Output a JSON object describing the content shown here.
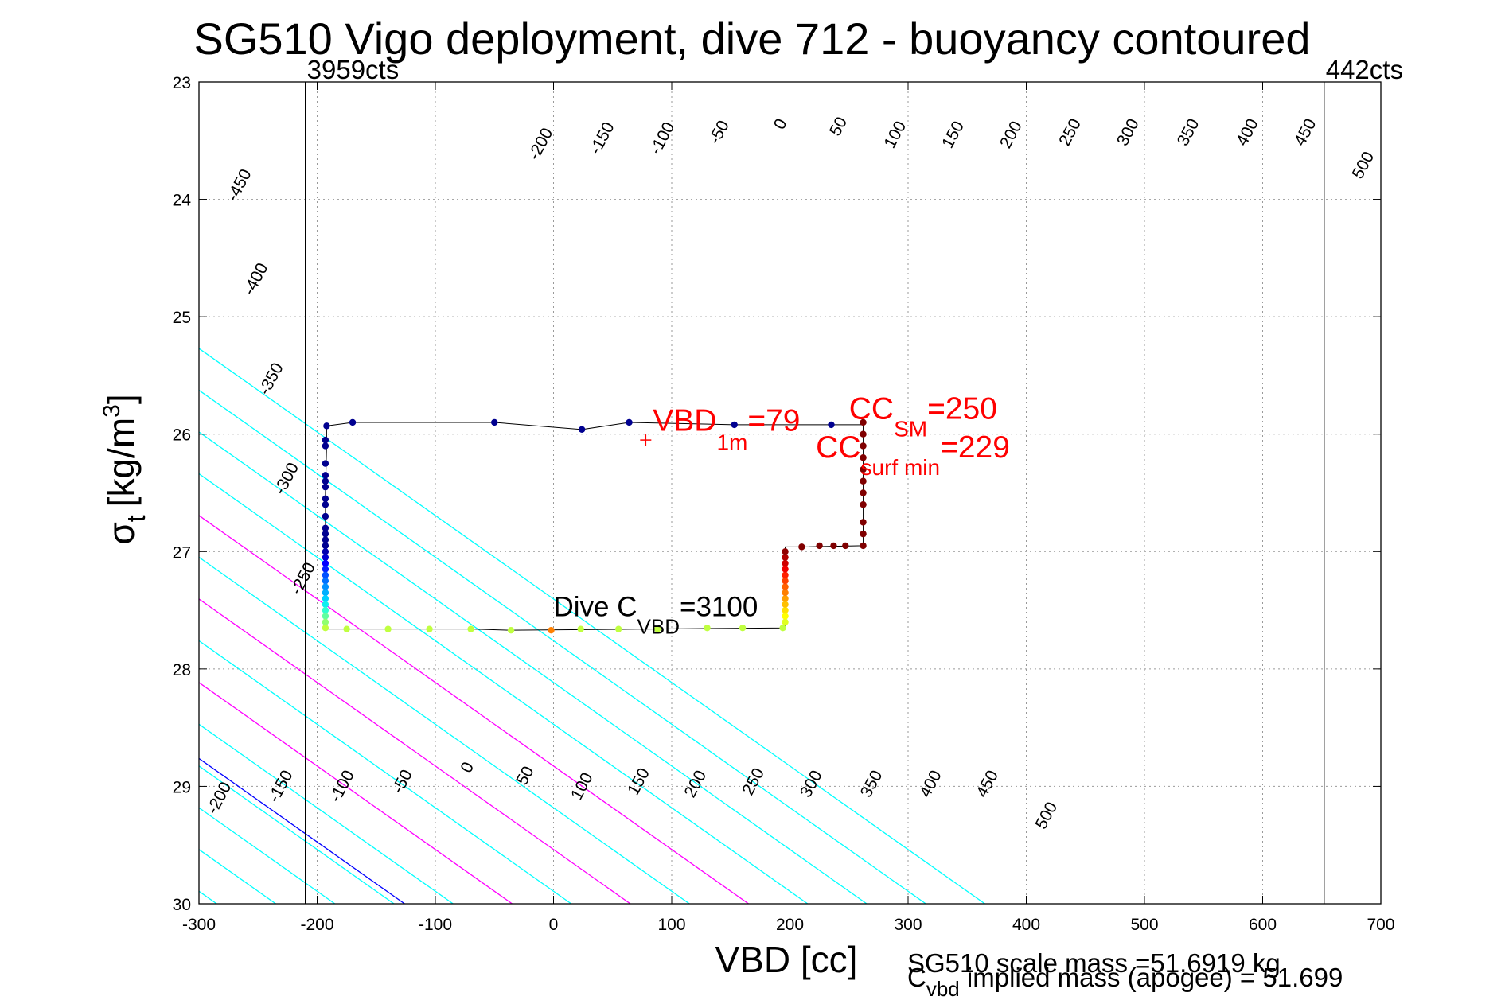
{
  "chart_data": {
    "type": "scatter",
    "title": "SG510 Vigo deployment, dive 712 - buoyancy contoured",
    "xlabel": "VBD [cc]",
    "ylabel_main": "σ",
    "ylabel_sub": "t",
    "ylabel_units": "[kg/m",
    "ylabel_sup": "3",
    "ylabel_close": "]",
    "xlim": [
      -300,
      700
    ],
    "ylim": [
      30,
      23
    ],
    "y_reversed": true,
    "grid": true,
    "x_ticks": [
      -300,
      -200,
      -100,
      0,
      100,
      200,
      300,
      400,
      500,
      600,
      700
    ],
    "x_tick_labels": [
      "-300",
      "-200",
      "-100",
      "0",
      "100",
      "200",
      "300",
      "400",
      "500",
      "600",
      "700"
    ],
    "y_ticks": [
      23,
      24,
      25,
      26,
      27,
      28,
      29,
      30
    ],
    "y_tick_labels": [
      "23",
      "24",
      "25",
      "26",
      "27",
      "28",
      "29",
      "30"
    ],
    "pump_limits": [
      {
        "vbd": -210,
        "label": "3959cts"
      },
      {
        "vbd": 652,
        "label": "442cts"
      }
    ],
    "buoyancy_contours": {
      "slope_vbd_per_sigma": 140.6,
      "line_x_at_sigma_30": [
        -1035,
        -985,
        -935,
        -885,
        -835,
        -785,
        -735,
        -685,
        -635,
        -585,
        -535,
        -485,
        -435,
        -385,
        -335,
        -285,
        -235,
        -185,
        -135,
        -85,
        -35,
        15,
        65,
        115,
        165,
        215,
        265,
        315,
        365
      ],
      "cyan_color": "#00ffff",
      "magenta_x_at_sigma_30": [
        -35,
        65,
        165
      ],
      "magenta_color": "#ff00ff",
      "zero_x_at_sigma_30": -126,
      "zero_color": "#0000ff"
    },
    "contour_labels_top": [
      {
        "text": "-450",
        "vbd": -262,
        "sigma": 23.9
      },
      {
        "text": "-400",
        "vbd": -248,
        "sigma": 24.7
      },
      {
        "text": "-350",
        "vbd": -235,
        "sigma": 25.55
      },
      {
        "text": "-300",
        "vbd": -222,
        "sigma": 26.4
      },
      {
        "text": "-250",
        "vbd": -208,
        "sigma": 27.25
      },
      {
        "text": "-200",
        "vbd": -7,
        "sigma": 23.55
      },
      {
        "text": "-150",
        "vbd": 45,
        "sigma": 23.5
      },
      {
        "text": "-100",
        "vbd": 96,
        "sigma": 23.5
      },
      {
        "text": "-50",
        "vbd": 144,
        "sigma": 23.45
      },
      {
        "text": "0",
        "vbd": 196,
        "sigma": 23.38
      },
      {
        "text": "50",
        "vbd": 245,
        "sigma": 23.4
      },
      {
        "text": "100",
        "vbd": 293,
        "sigma": 23.47
      },
      {
        "text": "150",
        "vbd": 342,
        "sigma": 23.47
      },
      {
        "text": "200",
        "vbd": 391,
        "sigma": 23.47
      },
      {
        "text": "250",
        "vbd": 441,
        "sigma": 23.45
      },
      {
        "text": "300",
        "vbd": 490,
        "sigma": 23.45
      },
      {
        "text": "350",
        "vbd": 541,
        "sigma": 23.45
      },
      {
        "text": "400",
        "vbd": 591,
        "sigma": 23.45
      },
      {
        "text": "450",
        "vbd": 640,
        "sigma": 23.45
      },
      {
        "text": "500",
        "vbd": 689,
        "sigma": 23.73
      }
    ],
    "contour_labels_bottom": [
      {
        "text": "-200",
        "vbd": -279,
        "sigma": 29.12
      },
      {
        "text": "-150",
        "vbd": -227,
        "sigma": 29.02
      },
      {
        "text": "-100",
        "vbd": -175,
        "sigma": 29.02
      },
      {
        "text": "-50",
        "vbd": -124,
        "sigma": 28.98
      },
      {
        "text": "0",
        "vbd": -69,
        "sigma": 28.86
      },
      {
        "text": "50",
        "vbd": -20,
        "sigma": 28.93
      },
      {
        "text": "100",
        "vbd": 28,
        "sigma": 29.02
      },
      {
        "text": "150",
        "vbd": 76,
        "sigma": 28.98
      },
      {
        "text": "200",
        "vbd": 124,
        "sigma": 29.0
      },
      {
        "text": "250",
        "vbd": 173,
        "sigma": 28.98
      },
      {
        "text": "300",
        "vbd": 222,
        "sigma": 29.0
      },
      {
        "text": "350",
        "vbd": 273,
        "sigma": 29.0
      },
      {
        "text": "400",
        "vbd": 323,
        "sigma": 29.0
      },
      {
        "text": "450",
        "vbd": 371,
        "sigma": 29.0
      },
      {
        "text": "500",
        "vbd": 421,
        "sigma": 29.27
      }
    ],
    "trajectory_line": [
      [
        -192,
        25.93
      ],
      [
        -170,
        25.9
      ],
      [
        -50,
        25.9
      ],
      [
        24,
        25.96
      ],
      [
        64,
        25.9
      ],
      [
        153,
        25.92
      ],
      [
        235,
        25.92
      ],
      [
        262,
        25.92
      ],
      [
        262,
        26.95
      ],
      [
        210,
        26.96
      ],
      [
        196,
        26.96
      ],
      [
        196,
        27.65
      ],
      [
        -36,
        27.67
      ],
      [
        -70,
        27.66
      ],
      [
        -105,
        27.66
      ],
      [
        -140,
        27.66
      ],
      [
        -175,
        27.66
      ],
      [
        -193,
        27.66
      ],
      [
        -193,
        27.2
      ],
      [
        -193,
        27.0
      ],
      [
        -193,
        26.5
      ],
      [
        -192,
        26.1
      ],
      [
        -192,
        25.93
      ]
    ],
    "points": [
      {
        "vbd": -192,
        "sigma": 25.93,
        "color": "#000090"
      },
      {
        "vbd": -170,
        "sigma": 25.9,
        "color": "#000090"
      },
      {
        "vbd": -50,
        "sigma": 25.9,
        "color": "#000090"
      },
      {
        "vbd": 24,
        "sigma": 25.96,
        "color": "#000090"
      },
      {
        "vbd": 64,
        "sigma": 25.9,
        "color": "#000090"
      },
      {
        "vbd": 153,
        "sigma": 25.92,
        "color": "#000090"
      },
      {
        "vbd": 235,
        "sigma": 25.92,
        "color": "#000090"
      },
      {
        "vbd": -193,
        "sigma": 26.05,
        "color": "#000090"
      },
      {
        "vbd": -193,
        "sigma": 26.1,
        "color": "#000090"
      },
      {
        "vbd": -193,
        "sigma": 26.25,
        "color": "#000090"
      },
      {
        "vbd": -193,
        "sigma": 26.35,
        "color": "#000090"
      },
      {
        "vbd": -193,
        "sigma": 26.4,
        "color": "#000090"
      },
      {
        "vbd": -193,
        "sigma": 26.45,
        "color": "#000090"
      },
      {
        "vbd": -193,
        "sigma": 26.55,
        "color": "#000090"
      },
      {
        "vbd": -193,
        "sigma": 26.6,
        "color": "#000090"
      },
      {
        "vbd": -193,
        "sigma": 26.7,
        "color": "#000090"
      },
      {
        "vbd": -193,
        "sigma": 26.8,
        "color": "#000090"
      },
      {
        "vbd": -193,
        "sigma": 26.85,
        "color": "#000090"
      },
      {
        "vbd": -193,
        "sigma": 26.9,
        "color": "#000090"
      },
      {
        "vbd": -193,
        "sigma": 26.95,
        "color": "#000090"
      },
      {
        "vbd": -193,
        "sigma": 27.0,
        "color": "#0000b0"
      },
      {
        "vbd": -193,
        "sigma": 27.05,
        "color": "#0000d0"
      },
      {
        "vbd": -193,
        "sigma": 27.1,
        "color": "#0000ff"
      },
      {
        "vbd": -193,
        "sigma": 27.15,
        "color": "#0020ff"
      },
      {
        "vbd": -193,
        "sigma": 27.2,
        "color": "#0050ff"
      },
      {
        "vbd": -193,
        "sigma": 27.25,
        "color": "#0070ff"
      },
      {
        "vbd": -193,
        "sigma": 27.3,
        "color": "#0090ff"
      },
      {
        "vbd": -193,
        "sigma": 27.35,
        "color": "#00b0ff"
      },
      {
        "vbd": -193,
        "sigma": 27.4,
        "color": "#00d0ff"
      },
      {
        "vbd": -193,
        "sigma": 27.45,
        "color": "#10eff0"
      },
      {
        "vbd": -193,
        "sigma": 27.5,
        "color": "#30ffd0"
      },
      {
        "vbd": -193,
        "sigma": 27.55,
        "color": "#60ffa0"
      },
      {
        "vbd": -193,
        "sigma": 27.6,
        "color": "#90ff70"
      },
      {
        "vbd": -193,
        "sigma": 27.65,
        "color": "#c0ff40"
      },
      {
        "vbd": -175,
        "sigma": 27.66,
        "color": "#c0ff40"
      },
      {
        "vbd": -140,
        "sigma": 27.66,
        "color": "#c0ff40"
      },
      {
        "vbd": -105,
        "sigma": 27.66,
        "color": "#c0ff40"
      },
      {
        "vbd": -70,
        "sigma": 27.66,
        "color": "#c0ff40"
      },
      {
        "vbd": -36,
        "sigma": 27.67,
        "color": "#c0ff40"
      },
      {
        "vbd": -2,
        "sigma": 27.67,
        "color": "#ff8000"
      },
      {
        "vbd": 23,
        "sigma": 27.66,
        "color": "#c0ff40"
      },
      {
        "vbd": 55,
        "sigma": 27.66,
        "color": "#c0ff40"
      },
      {
        "vbd": 88,
        "sigma": 27.66,
        "color": "#c0ff40"
      },
      {
        "vbd": 130,
        "sigma": 27.65,
        "color": "#c0ff40"
      },
      {
        "vbd": 160,
        "sigma": 27.65,
        "color": "#c0ff40"
      },
      {
        "vbd": 194,
        "sigma": 27.65,
        "color": "#c0ff40"
      },
      {
        "vbd": 196,
        "sigma": 27.6,
        "color": "#e0ff20"
      },
      {
        "vbd": 196,
        "sigma": 27.55,
        "color": "#ffff00"
      },
      {
        "vbd": 196,
        "sigma": 27.5,
        "color": "#ffe000"
      },
      {
        "vbd": 196,
        "sigma": 27.45,
        "color": "#ffc000"
      },
      {
        "vbd": 196,
        "sigma": 27.4,
        "color": "#ffa000"
      },
      {
        "vbd": 196,
        "sigma": 27.35,
        "color": "#ff8000"
      },
      {
        "vbd": 196,
        "sigma": 27.3,
        "color": "#ff6000"
      },
      {
        "vbd": 196,
        "sigma": 27.25,
        "color": "#ff4000"
      },
      {
        "vbd": 196,
        "sigma": 27.2,
        "color": "#ff2000"
      },
      {
        "vbd": 196,
        "sigma": 27.15,
        "color": "#f00000"
      },
      {
        "vbd": 196,
        "sigma": 27.1,
        "color": "#d00000"
      },
      {
        "vbd": 196,
        "sigma": 27.05,
        "color": "#b00000"
      },
      {
        "vbd": 196,
        "sigma": 27.0,
        "color": "#900000"
      },
      {
        "vbd": 210,
        "sigma": 26.96,
        "color": "#800000"
      },
      {
        "vbd": 225,
        "sigma": 26.95,
        "color": "#800000"
      },
      {
        "vbd": 237,
        "sigma": 26.95,
        "color": "#800000"
      },
      {
        "vbd": 247,
        "sigma": 26.95,
        "color": "#800000"
      },
      {
        "vbd": 262,
        "sigma": 26.95,
        "color": "#800000"
      },
      {
        "vbd": 262,
        "sigma": 26.85,
        "color": "#800000"
      },
      {
        "vbd": 262,
        "sigma": 26.75,
        "color": "#800000"
      },
      {
        "vbd": 262,
        "sigma": 26.6,
        "color": "#800000"
      },
      {
        "vbd": 262,
        "sigma": 26.5,
        "color": "#800000"
      },
      {
        "vbd": 262,
        "sigma": 26.4,
        "color": "#800000"
      },
      {
        "vbd": 262,
        "sigma": 26.3,
        "color": "#800000"
      },
      {
        "vbd": 262,
        "sigma": 26.2,
        "color": "#800000"
      },
      {
        "vbd": 262,
        "sigma": 26.1,
        "color": "#800000"
      },
      {
        "vbd": 262,
        "sigma": 26.0,
        "color": "#800000"
      },
      {
        "vbd": 262,
        "sigma": 25.9,
        "color": "#800000"
      }
    ],
    "vbd_1m_marker": {
      "vbd": 78,
      "sigma": 26.05,
      "color": "#ff0000"
    },
    "annotations": {
      "vbd_1m": {
        "main": "VBD",
        "sub": "1m",
        "value": "=79",
        "vbd": 84,
        "sigma": 25.97
      },
      "cc_sm": {
        "main": "CC",
        "sub": "SM",
        "value": "=250",
        "vbd": 250,
        "sigma": 25.87
      },
      "cc_surf_min": {
        "main": "CC",
        "sub": "surf min",
        "value": "=229",
        "vbd": 222,
        "sigma": 26.2
      },
      "dive_c_vbd": {
        "main": "Dive C",
        "sub": "VBD",
        "value": "=3100",
        "vbd": 0,
        "sigma": 27.55
      }
    },
    "footer_scale_mass": "SG510 scale mass =51.6919 kg",
    "footer_implied": {
      "main": "C",
      "sub": "vbd",
      "rest": " implied mass (apogee) = 51.699"
    }
  }
}
